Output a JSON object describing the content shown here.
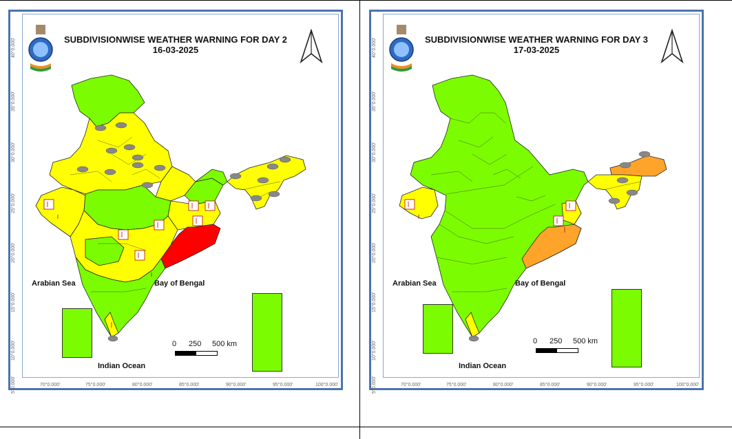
{
  "colors": {
    "no_warning": "#7cfc00",
    "yellow": "#ffff00",
    "orange": "#ffa42b",
    "red": "#ff0000",
    "frame": "#4b73b1"
  },
  "panels": [
    {
      "title_line1": "SUBDIVISIONWISE WEATHER WARNING FOR DAY 2",
      "title_line2": "16-03-2025",
      "arabian_sea": "Arabian Sea",
      "bay_of_bengal": "Bay of Bengal",
      "indian_ocean": "Indian Ocean",
      "scale_labels": [
        "0",
        "250",
        "500 km"
      ],
      "lat_labels": [
        "40°0.000'",
        "35°0.000'",
        "30°0.000'",
        "25°0.000'",
        "20°0.000'",
        "15°0.000'",
        "10°0.000'",
        "5°0.000'"
      ],
      "lon_labels": [
        "70°0.000'",
        "75°0.000'",
        "80°0.000'",
        "85°0.000'",
        "90°0.000'",
        "95°0.000'",
        "100°0.000'"
      ],
      "warning_regions": {
        "red": "Odisha",
        "orange": ""
      }
    },
    {
      "title_line1": "SUBDIVISIONWISE WEATHER WARNING FOR DAY 3",
      "title_line2": "17-03-2025",
      "arabian_sea": "Arabian Sea",
      "bay_of_bengal": "Bay of Bengal",
      "indian_ocean": "Indian Ocean",
      "scale_labels": [
        "0",
        "250",
        "500 km"
      ],
      "lat_labels": [
        "40°0.000'",
        "35°0.000'",
        "30°0.000'",
        "25°0.000'",
        "20°0.000'",
        "15°0.000'",
        "10°0.000'",
        "5°0.000'"
      ],
      "lon_labels": [
        "70°0.000'",
        "75°0.000'",
        "80°0.000'",
        "85°0.000'",
        "90°0.000'",
        "95°0.000'",
        "100°0.000'"
      ],
      "warning_regions": {
        "red": "",
        "orange": "Odisha"
      }
    }
  ]
}
